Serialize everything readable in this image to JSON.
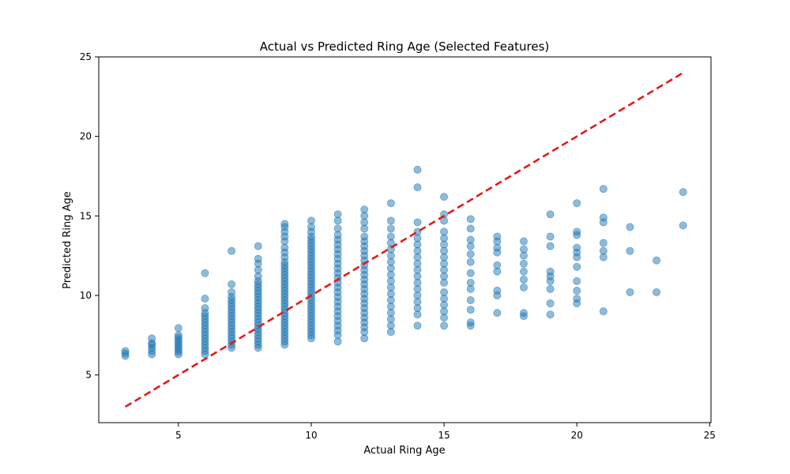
{
  "chart_data": {
    "type": "scatter",
    "title": "Actual vs Predicted Ring Age (Selected Features)",
    "xlabel": "Actual Ring Age",
    "ylabel": "Predicted Ring Age",
    "xlim": [
      2.0,
      25.05
    ],
    "ylim": [
      2.0,
      25.0
    ],
    "xticks": [
      5,
      10,
      15,
      20,
      25
    ],
    "yticks": [
      5,
      10,
      15,
      20,
      25
    ],
    "grid": false,
    "point_color": "#1f77b4",
    "point_alpha": 0.5,
    "reference_line": {
      "x": [
        3,
        24
      ],
      "y": [
        3,
        24
      ],
      "color": "#e31a1c",
      "style": "dashed"
    },
    "series": [
      {
        "points": [
          [
            3,
            6.2
          ],
          [
            3,
            6.35
          ],
          [
            3,
            6.5
          ],
          [
            4,
            6.3
          ],
          [
            4,
            6.5
          ],
          [
            4,
            6.7
          ],
          [
            4,
            6.9
          ],
          [
            4,
            7.0
          ],
          [
            4,
            7.3
          ],
          [
            5,
            6.3
          ],
          [
            5,
            6.45
          ],
          [
            5,
            6.6
          ],
          [
            5,
            6.75
          ],
          [
            5,
            6.9
          ],
          [
            5,
            7.05
          ],
          [
            5,
            7.2
          ],
          [
            5,
            7.35
          ],
          [
            5,
            7.5
          ],
          [
            5,
            7.95
          ],
          [
            6,
            6.3
          ],
          [
            6,
            6.5
          ],
          [
            6,
            6.7
          ],
          [
            6,
            6.9
          ],
          [
            6,
            7.1
          ],
          [
            6,
            7.3
          ],
          [
            6,
            7.5
          ],
          [
            6,
            7.7
          ],
          [
            6,
            7.9
          ],
          [
            6,
            8.1
          ],
          [
            6,
            8.3
          ],
          [
            6,
            8.5
          ],
          [
            6,
            8.7
          ],
          [
            6,
            8.9
          ],
          [
            6,
            9.2
          ],
          [
            6,
            9.8
          ],
          [
            6,
            11.4
          ],
          [
            7,
            6.7
          ],
          [
            7,
            6.9
          ],
          [
            7,
            7.1
          ],
          [
            7,
            7.3
          ],
          [
            7,
            7.5
          ],
          [
            7,
            7.7
          ],
          [
            7,
            7.9
          ],
          [
            7,
            8.1
          ],
          [
            7,
            8.3
          ],
          [
            7,
            8.5
          ],
          [
            7,
            8.7
          ],
          [
            7,
            8.9
          ],
          [
            7,
            9.1
          ],
          [
            7,
            9.3
          ],
          [
            7,
            9.5
          ],
          [
            7,
            9.7
          ],
          [
            7,
            9.9
          ],
          [
            7,
            10.2
          ],
          [
            7,
            10.7
          ],
          [
            7,
            12.8
          ],
          [
            8,
            6.7
          ],
          [
            8,
            6.9
          ],
          [
            8,
            7.1
          ],
          [
            8,
            7.3
          ],
          [
            8,
            7.5
          ],
          [
            8,
            7.7
          ],
          [
            8,
            7.9
          ],
          [
            8,
            8.1
          ],
          [
            8,
            8.3
          ],
          [
            8,
            8.5
          ],
          [
            8,
            8.7
          ],
          [
            8,
            8.9
          ],
          [
            8,
            9.1
          ],
          [
            8,
            9.3
          ],
          [
            8,
            9.5
          ],
          [
            8,
            9.7
          ],
          [
            8,
            9.9
          ],
          [
            8,
            10.1
          ],
          [
            8,
            10.3
          ],
          [
            8,
            10.5
          ],
          [
            8,
            10.7
          ],
          [
            8,
            10.9
          ],
          [
            8,
            11.2
          ],
          [
            8,
            11.6
          ],
          [
            8,
            12.0
          ],
          [
            8,
            12.3
          ],
          [
            8,
            13.1
          ],
          [
            9,
            6.9
          ],
          [
            9,
            7.1
          ],
          [
            9,
            7.3
          ],
          [
            9,
            7.5
          ],
          [
            9,
            7.7
          ],
          [
            9,
            7.9
          ],
          [
            9,
            8.1
          ],
          [
            9,
            8.3
          ],
          [
            9,
            8.5
          ],
          [
            9,
            8.7
          ],
          [
            9,
            8.9
          ],
          [
            9,
            9.1
          ],
          [
            9,
            9.3
          ],
          [
            9,
            9.5
          ],
          [
            9,
            9.7
          ],
          [
            9,
            9.9
          ],
          [
            9,
            10.1
          ],
          [
            9,
            10.3
          ],
          [
            9,
            10.5
          ],
          [
            9,
            10.7
          ],
          [
            9,
            10.9
          ],
          [
            9,
            11.1
          ],
          [
            9,
            11.3
          ],
          [
            9,
            11.5
          ],
          [
            9,
            11.7
          ],
          [
            9,
            11.9
          ],
          [
            9,
            12.1
          ],
          [
            9,
            12.4
          ],
          [
            9,
            12.7
          ],
          [
            9,
            13.0
          ],
          [
            9,
            13.4
          ],
          [
            9,
            13.7
          ],
          [
            9,
            14.0
          ],
          [
            9,
            14.3
          ],
          [
            9,
            14.5
          ],
          [
            10,
            7.3
          ],
          [
            10,
            7.5
          ],
          [
            10,
            7.7
          ],
          [
            10,
            7.9
          ],
          [
            10,
            8.1
          ],
          [
            10,
            8.3
          ],
          [
            10,
            8.5
          ],
          [
            10,
            8.7
          ],
          [
            10,
            8.9
          ],
          [
            10,
            9.1
          ],
          [
            10,
            9.3
          ],
          [
            10,
            9.5
          ],
          [
            10,
            9.7
          ],
          [
            10,
            9.9
          ],
          [
            10,
            10.1
          ],
          [
            10,
            10.3
          ],
          [
            10,
            10.5
          ],
          [
            10,
            10.7
          ],
          [
            10,
            10.9
          ],
          [
            10,
            11.1
          ],
          [
            10,
            11.3
          ],
          [
            10,
            11.5
          ],
          [
            10,
            11.7
          ],
          [
            10,
            11.9
          ],
          [
            10,
            12.1
          ],
          [
            10,
            12.3
          ],
          [
            10,
            12.5
          ],
          [
            10,
            12.7
          ],
          [
            10,
            12.9
          ],
          [
            10,
            13.1
          ],
          [
            10,
            13.3
          ],
          [
            10,
            13.5
          ],
          [
            10,
            13.7
          ],
          [
            10,
            14.0
          ],
          [
            10,
            14.3
          ],
          [
            10,
            14.7
          ],
          [
            11,
            7.1
          ],
          [
            11,
            7.5
          ],
          [
            11,
            7.8
          ],
          [
            11,
            8.1
          ],
          [
            11,
            8.4
          ],
          [
            11,
            8.7
          ],
          [
            11,
            9.0
          ],
          [
            11,
            9.3
          ],
          [
            11,
            9.6
          ],
          [
            11,
            9.9
          ],
          [
            11,
            10.2
          ],
          [
            11,
            10.5
          ],
          [
            11,
            10.8
          ],
          [
            11,
            11.1
          ],
          [
            11,
            11.4
          ],
          [
            11,
            11.7
          ],
          [
            11,
            12.0
          ],
          [
            11,
            12.3
          ],
          [
            11,
            12.6
          ],
          [
            11,
            12.9
          ],
          [
            11,
            13.2
          ],
          [
            11,
            13.5
          ],
          [
            11,
            13.8
          ],
          [
            11,
            14.2
          ],
          [
            11,
            14.7
          ],
          [
            11,
            15.1
          ],
          [
            12,
            7.3
          ],
          [
            12,
            7.7
          ],
          [
            12,
            8.0
          ],
          [
            12,
            8.3
          ],
          [
            12,
            8.6
          ],
          [
            12,
            8.9
          ],
          [
            12,
            9.2
          ],
          [
            12,
            9.5
          ],
          [
            12,
            9.8
          ],
          [
            12,
            10.1
          ],
          [
            12,
            10.4
          ],
          [
            12,
            10.7
          ],
          [
            12,
            11.0
          ],
          [
            12,
            11.3
          ],
          [
            12,
            11.6
          ],
          [
            12,
            11.9
          ],
          [
            12,
            12.2
          ],
          [
            12,
            12.5
          ],
          [
            12,
            12.8
          ],
          [
            12,
            13.1
          ],
          [
            12,
            13.4
          ],
          [
            12,
            13.7
          ],
          [
            12,
            14.2
          ],
          [
            12,
            14.6
          ],
          [
            12,
            15.0
          ],
          [
            12,
            15.4
          ],
          [
            13,
            7.7
          ],
          [
            13,
            8.1
          ],
          [
            13,
            8.5
          ],
          [
            13,
            8.9
          ],
          [
            13,
            9.3
          ],
          [
            13,
            9.7
          ],
          [
            13,
            10.1
          ],
          [
            13,
            10.5
          ],
          [
            13,
            10.9
          ],
          [
            13,
            11.3
          ],
          [
            13,
            11.7
          ],
          [
            13,
            12.1
          ],
          [
            13,
            12.5
          ],
          [
            13,
            12.9
          ],
          [
            13,
            13.3
          ],
          [
            13,
            13.7
          ],
          [
            13,
            14.2
          ],
          [
            13,
            14.7
          ],
          [
            13,
            15.8
          ],
          [
            14,
            8.1
          ],
          [
            14,
            8.8
          ],
          [
            14,
            9.2
          ],
          [
            14,
            9.6
          ],
          [
            14,
            10.0
          ],
          [
            14,
            10.4
          ],
          [
            14,
            10.8
          ],
          [
            14,
            11.2
          ],
          [
            14,
            11.6
          ],
          [
            14,
            12.0
          ],
          [
            14,
            12.4
          ],
          [
            14,
            12.8
          ],
          [
            14,
            13.2
          ],
          [
            14,
            13.6
          ],
          [
            14,
            14.0
          ],
          [
            14,
            14.6
          ],
          [
            14,
            16.8
          ],
          [
            14,
            17.9
          ],
          [
            15,
            8.1
          ],
          [
            15,
            8.6
          ],
          [
            15,
            9.0
          ],
          [
            15,
            9.4
          ],
          [
            15,
            9.8
          ],
          [
            15,
            10.2
          ],
          [
            15,
            10.8
          ],
          [
            15,
            11.2
          ],
          [
            15,
            11.6
          ],
          [
            15,
            12.0
          ],
          [
            15,
            12.4
          ],
          [
            15,
            12.8
          ],
          [
            15,
            13.2
          ],
          [
            15,
            13.6
          ],
          [
            15,
            14.0
          ],
          [
            15,
            14.7
          ],
          [
            15,
            15.1
          ],
          [
            15,
            16.2
          ],
          [
            16,
            8.1
          ],
          [
            16,
            8.3
          ],
          [
            16,
            9.1
          ],
          [
            16,
            9.7
          ],
          [
            16,
            10.4
          ],
          [
            16,
            10.8
          ],
          [
            16,
            11.4
          ],
          [
            16,
            12.1
          ],
          [
            16,
            12.6
          ],
          [
            16,
            13.1
          ],
          [
            16,
            13.5
          ],
          [
            16,
            14.2
          ],
          [
            16,
            14.8
          ],
          [
            17,
            8.9
          ],
          [
            17,
            10.0
          ],
          [
            17,
            10.3
          ],
          [
            17,
            11.5
          ],
          [
            17,
            11.9
          ],
          [
            17,
            12.7
          ],
          [
            17,
            13.0
          ],
          [
            17,
            13.4
          ],
          [
            17,
            13.7
          ],
          [
            18,
            8.7
          ],
          [
            18,
            8.9
          ],
          [
            18,
            10.5
          ],
          [
            18,
            11.0
          ],
          [
            18,
            11.5
          ],
          [
            18,
            12.0
          ],
          [
            18,
            12.5
          ],
          [
            18,
            12.9
          ],
          [
            18,
            13.4
          ],
          [
            19,
            8.8
          ],
          [
            19,
            9.5
          ],
          [
            19,
            10.4
          ],
          [
            19,
            10.9
          ],
          [
            19,
            11.2
          ],
          [
            19,
            11.5
          ],
          [
            19,
            13.1
          ],
          [
            19,
            13.7
          ],
          [
            19,
            15.1
          ],
          [
            20,
            9.5
          ],
          [
            20,
            9.8
          ],
          [
            20,
            10.3
          ],
          [
            20,
            10.9
          ],
          [
            20,
            11.8
          ],
          [
            20,
            12.4
          ],
          [
            20,
            12.7
          ],
          [
            20,
            13.0
          ],
          [
            20,
            13.8
          ],
          [
            20,
            14.0
          ],
          [
            20,
            15.8
          ],
          [
            21,
            9.0
          ],
          [
            21,
            12.4
          ],
          [
            21,
            12.8
          ],
          [
            21,
            13.3
          ],
          [
            21,
            14.6
          ],
          [
            21,
            14.9
          ],
          [
            21,
            16.7
          ],
          [
            22,
            10.2
          ],
          [
            22,
            12.8
          ],
          [
            22,
            14.3
          ],
          [
            23,
            10.2
          ],
          [
            23,
            12.2
          ],
          [
            24,
            14.4
          ],
          [
            24,
            16.5
          ]
        ]
      }
    ]
  }
}
